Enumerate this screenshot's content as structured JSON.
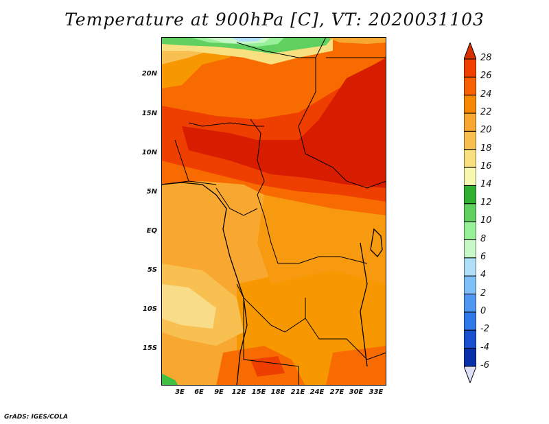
{
  "title": "Temperature at 900hPa [C], VT: 2020031103",
  "footer": "GrADS: IGES/COLA",
  "map": {
    "lat_labels": [
      "20N",
      "15N",
      "10N",
      "5N",
      "EQ",
      "5S",
      "10S",
      "15S"
    ],
    "lon_labels": [
      "3E",
      "6E",
      "9E",
      "12E",
      "15E",
      "18E",
      "21E",
      "24E",
      "27E",
      "30E",
      "33E"
    ]
  },
  "colorbar": {
    "labels": [
      "28",
      "26",
      "24",
      "22",
      "20",
      "18",
      "16",
      "14",
      "12",
      "10",
      "8",
      "6",
      "4",
      "2",
      "0",
      "-2",
      "-4",
      "-6"
    ],
    "colors": [
      "#d73000",
      "#f04000",
      "#f86000",
      "#f88800",
      "#f8a830",
      "#f8c050",
      "#f8e080",
      "#f8f8b0",
      "#30b030",
      "#60d060",
      "#98f098",
      "#c8f8c8",
      "#b0e0f8",
      "#80c0f8",
      "#5098f0",
      "#3078e8",
      "#1850d0",
      "#0830a8",
      "#001880"
    ]
  },
  "colors": {
    "hot": "#d81c00",
    "warm": "#ee3e00",
    "orange": "#f86b00",
    "amber": "#f89800",
    "light": "#f8b038",
    "pale": "#f8d070",
    "cream": "#f8ec9c",
    "green": "#40c040",
    "lightgreen": "#a0f0a0",
    "sky": "#b0e0f8"
  }
}
